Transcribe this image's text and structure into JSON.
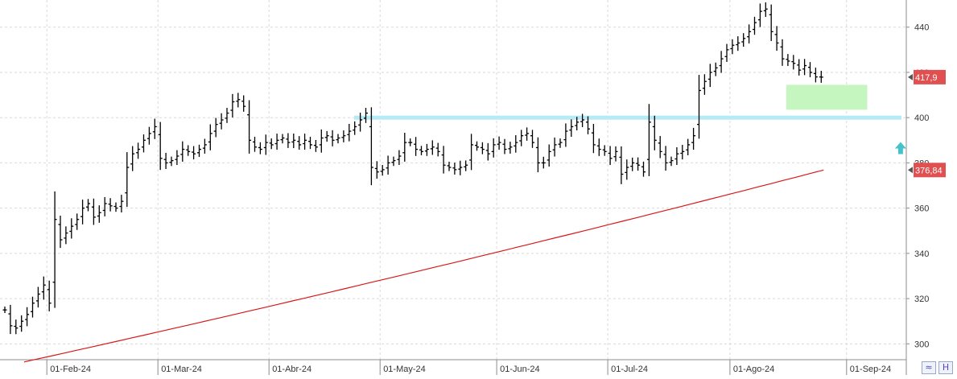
{
  "chart_data": {
    "type": "ohlc",
    "y_axis": {
      "min": 293,
      "max": 452,
      "ticks": [
        300,
        320,
        340,
        360,
        380,
        400,
        420,
        440
      ],
      "position": "right"
    },
    "x_axis": {
      "labels": [
        "01-Feb-24",
        "01-Mar-24",
        "01-Abr-24",
        "01-May-24",
        "01-Jun-24",
        "01-Jul-24",
        "01-Ago-24",
        "01-Sep-24"
      ],
      "label_bars": [
        8,
        28,
        48,
        68,
        89,
        109,
        131,
        152
      ]
    },
    "price_close": [
      315,
      308,
      307,
      310,
      313,
      318,
      322,
      326,
      318,
      355,
      346,
      349,
      352,
      355,
      360,
      362,
      356,
      358,
      362,
      361,
      360,
      363,
      378,
      384,
      386,
      390,
      393,
      396,
      382,
      380,
      381,
      383,
      386,
      385,
      384,
      386,
      388,
      393,
      397,
      399,
      402,
      407,
      408,
      405,
      390,
      387,
      386,
      389,
      388,
      390,
      391,
      389,
      390,
      388,
      390,
      388,
      387,
      391,
      392,
      390,
      391,
      392,
      394,
      396,
      399,
      402,
      378,
      376,
      377,
      380,
      381,
      383,
      389,
      389,
      386,
      385,
      386,
      387,
      385,
      379,
      378,
      377,
      378,
      379,
      388,
      387,
      386,
      384,
      388,
      389,
      386,
      387,
      389,
      392,
      393,
      389,
      380,
      380,
      385,
      388,
      389,
      394,
      396,
      398,
      399,
      395,
      388,
      386,
      385,
      382,
      385,
      375,
      378,
      380,
      379,
      376,
      398,
      390,
      385,
      380,
      381,
      384,
      385,
      388,
      392,
      412,
      416,
      420,
      422,
      426,
      430,
      432,
      433,
      435,
      438,
      442,
      447,
      448,
      438,
      433,
      426,
      425,
      424,
      421,
      423,
      420,
      418,
      417.9
    ],
    "sma": {
      "start": 292,
      "end": 376.84,
      "color": "#d81818"
    },
    "last_price": {
      "value": 417.9,
      "label": "417,9",
      "color": "#e05050"
    },
    "sma_label": {
      "value": 376.84,
      "label": "376,84",
      "color": "#e05050"
    },
    "resistance_line": {
      "value": 400,
      "color": "#b6eaf5"
    },
    "green_zone": {
      "from_bar": 141,
      "to_bar": 155,
      "low": 403.5,
      "high": 414.5,
      "color": "#c6f6c0"
    },
    "up_arrow": {
      "bar": 161,
      "value": 386,
      "color": "#46c2cc"
    }
  },
  "colors": {
    "bars": "#000000",
    "grid": "#d9d9d9",
    "axis": "#8c8c8c"
  },
  "icons": {
    "corner_left": "zoom-arrows-icon",
    "corner_right": "save-icon"
  }
}
